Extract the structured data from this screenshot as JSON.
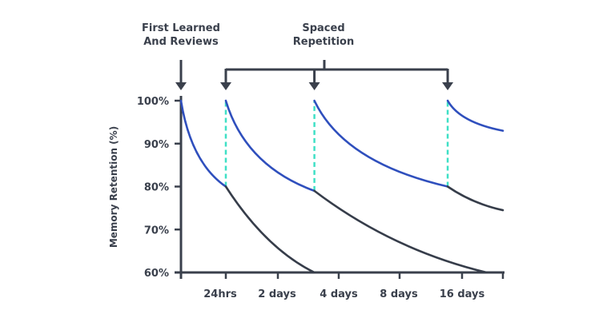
{
  "chart_data": {
    "type": "line",
    "title": "",
    "ylabel": "Memory Retention (%)",
    "xlabel": "",
    "ylim": [
      60,
      100
    ],
    "yticks": [
      "100%",
      "90%",
      "80%",
      "70%",
      "60%"
    ],
    "ytick_values": [
      100,
      90,
      80,
      70,
      60
    ],
    "xticks": [
      "24hrs",
      "2 days",
      "4 days",
      "8 days",
      "16 days"
    ],
    "grid": false,
    "annotations": {
      "first": [
        "First Learned",
        "And Reviews"
      ],
      "spaced": [
        "Spaced",
        "Repetition"
      ]
    },
    "x_units": "tick index (0 = origin, 1 = 24hrs, 2 = 2 days, 3 = 4 days, 4 = 8 days, 5 = 16 days)",
    "reviews": [
      {
        "x": 1,
        "from": 80,
        "to": 100
      },
      {
        "x": 2.6,
        "from": 79,
        "to": 100
      },
      {
        "x": 4.77,
        "from": 80,
        "to": 100
      }
    ],
    "retention_segments": [
      {
        "from": [
          0,
          100
        ],
        "to": [
          1,
          80
        ],
        "color": "blue"
      },
      {
        "from": [
          1,
          80
        ],
        "to": [
          2.6,
          60
        ],
        "color": "dark"
      },
      {
        "from": [
          1,
          100
        ],
        "to": [
          2.6,
          79
        ],
        "color": "blue"
      },
      {
        "from": [
          2.6,
          79
        ],
        "to": [
          5.6,
          60
        ],
        "color": "dark"
      },
      {
        "from": [
          2.6,
          100
        ],
        "to": [
          4.77,
          80
        ],
        "color": "blue"
      },
      {
        "from": [
          4.77,
          80
        ],
        "to": [
          6,
          74.5
        ],
        "color": "dark"
      },
      {
        "from": [
          4.77,
          100
        ],
        "to": [
          6,
          93
        ],
        "color": "blue"
      }
    ],
    "colors": {
      "blue": "#2f4fbd",
      "dark": "#363d4a",
      "dashed": "#3fe0c6",
      "axis": "#3a404c"
    }
  }
}
